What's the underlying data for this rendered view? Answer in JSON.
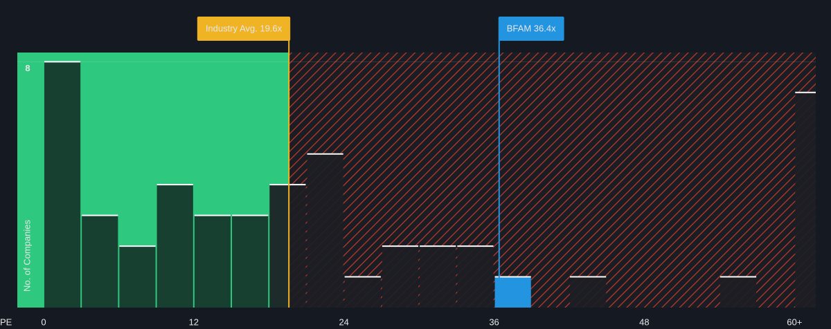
{
  "chart_data": {
    "type": "histogram",
    "bins": [
      0,
      3,
      6,
      9,
      12,
      15,
      18,
      21,
      24,
      27,
      30,
      33,
      36,
      39,
      42,
      45,
      48,
      51,
      54,
      57,
      60,
      63
    ],
    "values": [
      8,
      3,
      2,
      4,
      3,
      3,
      4,
      5,
      1,
      2,
      2,
      2,
      1,
      0,
      1,
      0,
      0,
      0,
      1,
      0,
      7
    ],
    "xlim": [
      -2.1,
      61.7
    ],
    "xticks": [
      0,
      12,
      24,
      36,
      48,
      {
        "value": 60,
        "label": "60+"
      }
    ],
    "ylim": [
      0,
      8.3
    ],
    "yticks": [
      8
    ],
    "x_label": "PE",
    "y_label": "No. of Companies",
    "annotations": [
      {
        "label": "Industry Avg. 19.6x",
        "value": 19.6,
        "color": "#f0b323"
      },
      {
        "label": "BFAM 36.4x",
        "value": 36.4,
        "color": "#2394e0"
      }
    ],
    "colors": {
      "below": "#2ec97e",
      "above_hatch": "#c0392b",
      "highlight": "#2394e0"
    }
  }
}
